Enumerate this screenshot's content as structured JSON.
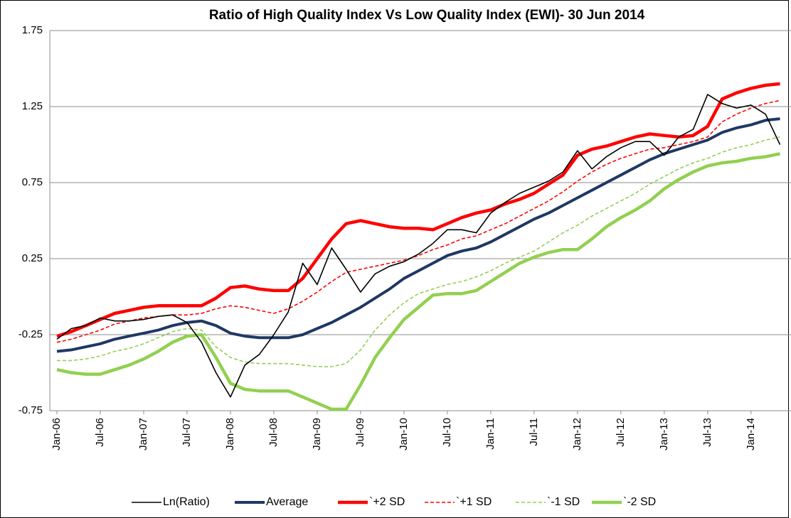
{
  "chart_data": {
    "type": "line",
    "title": "Ratio of High Quality Index Vs Low Quality Index (EWI)- 30 Jun 2014",
    "categories": [
      "Jan-06",
      null,
      null,
      "Jul-06",
      null,
      null,
      "Jan-07",
      null,
      null,
      "Jul-07",
      null,
      null,
      "Jan-08",
      null,
      null,
      "Jul-08",
      null,
      null,
      "Jan-09",
      null,
      null,
      "Jul-09",
      null,
      null,
      "Jan-10",
      null,
      null,
      "Jul-10",
      null,
      null,
      "Jan-11",
      null,
      null,
      "Jul-11",
      null,
      null,
      "Jan-12",
      null,
      null,
      "Jul-12",
      null,
      null,
      "Jan-13",
      null,
      null,
      "Jul-13",
      null,
      null,
      "Jan-14",
      null,
      null
    ],
    "ylim": [
      -0.75,
      1.75
    ],
    "yticks": [
      -0.75,
      -0.25,
      0.25,
      0.75,
      1.25,
      1.75
    ],
    "grid": true,
    "legend": "bottom",
    "series": [
      {
        "name": "Ln(Ratio)",
        "color": "#000000",
        "values": [
          -0.28,
          -0.21,
          -0.19,
          -0.14,
          -0.16,
          -0.16,
          -0.15,
          -0.13,
          -0.12,
          -0.17,
          -0.3,
          -0.5,
          -0.66,
          -0.45,
          -0.38,
          -0.25,
          -0.1,
          0.22,
          0.08,
          0.32,
          0.18,
          0.03,
          0.15,
          0.2,
          0.23,
          0.28,
          0.35,
          0.44,
          0.44,
          0.42,
          0.55,
          0.62,
          0.68,
          0.72,
          0.76,
          0.82,
          0.96,
          0.84,
          0.92,
          0.98,
          1.02,
          1.02,
          0.93,
          1.05,
          1.1,
          1.33,
          1.27,
          1.24,
          1.26,
          1.2,
          1.0
        ]
      },
      {
        "name": "Average",
        "color": "#1f3864",
        "values": [
          -0.36,
          -0.35,
          -0.33,
          -0.31,
          -0.28,
          -0.26,
          -0.24,
          -0.22,
          -0.19,
          -0.17,
          -0.16,
          -0.19,
          -0.24,
          -0.26,
          -0.27,
          -0.27,
          -0.27,
          -0.25,
          -0.21,
          -0.17,
          -0.12,
          -0.07,
          -0.01,
          0.05,
          0.12,
          0.17,
          0.22,
          0.27,
          0.3,
          0.32,
          0.36,
          0.41,
          0.46,
          0.51,
          0.55,
          0.6,
          0.65,
          0.7,
          0.75,
          0.8,
          0.85,
          0.9,
          0.94,
          0.97,
          1.0,
          1.03,
          1.08,
          1.11,
          1.13,
          1.16,
          1.17
        ]
      },
      {
        "name": "`+2 SD",
        "color": "#ff0000",
        "values": [
          -0.26,
          -0.23,
          -0.19,
          -0.15,
          -0.11,
          -0.09,
          -0.07,
          -0.06,
          -0.06,
          -0.06,
          -0.06,
          -0.01,
          0.06,
          0.07,
          0.05,
          0.04,
          0.04,
          0.12,
          0.25,
          0.38,
          0.48,
          0.5,
          0.48,
          0.46,
          0.45,
          0.45,
          0.44,
          0.48,
          0.52,
          0.55,
          0.57,
          0.61,
          0.64,
          0.68,
          0.74,
          0.8,
          0.93,
          0.97,
          0.99,
          1.02,
          1.05,
          1.07,
          1.06,
          1.05,
          1.06,
          1.12,
          1.3,
          1.34,
          1.37,
          1.39,
          1.4
        ]
      },
      {
        "name": "`+1 SD",
        "color": "#ff0000",
        "dashed": true,
        "values": [
          -0.3,
          -0.28,
          -0.25,
          -0.22,
          -0.18,
          -0.16,
          -0.14,
          -0.13,
          -0.12,
          -0.12,
          -0.11,
          -0.08,
          -0.06,
          -0.07,
          -0.09,
          -0.11,
          -0.08,
          -0.03,
          0.03,
          0.1,
          0.16,
          0.18,
          0.2,
          0.22,
          0.24,
          0.27,
          0.31,
          0.34,
          0.38,
          0.4,
          0.44,
          0.48,
          0.53,
          0.58,
          0.63,
          0.69,
          0.76,
          0.82,
          0.87,
          0.91,
          0.94,
          0.97,
          0.98,
          1.0,
          1.02,
          1.05,
          1.15,
          1.2,
          1.24,
          1.27,
          1.29
        ]
      },
      {
        "name": "`-1 SD",
        "color": "#92d050",
        "dashed": true,
        "values": [
          -0.42,
          -0.42,
          -0.41,
          -0.39,
          -0.36,
          -0.34,
          -0.31,
          -0.27,
          -0.23,
          -0.21,
          -0.22,
          -0.33,
          -0.4,
          -0.43,
          -0.44,
          -0.44,
          -0.44,
          -0.45,
          -0.46,
          -0.46,
          -0.44,
          -0.35,
          -0.22,
          -0.12,
          -0.04,
          0.02,
          0.05,
          0.08,
          0.1,
          0.13,
          0.17,
          0.22,
          0.26,
          0.3,
          0.36,
          0.42,
          0.47,
          0.53,
          0.58,
          0.63,
          0.68,
          0.74,
          0.79,
          0.84,
          0.88,
          0.91,
          0.95,
          0.98,
          1.0,
          1.03,
          1.05
        ]
      },
      {
        "name": "`-2 SD",
        "color": "#92d050",
        "values": [
          -0.48,
          -0.5,
          -0.51,
          -0.51,
          -0.48,
          -0.45,
          -0.41,
          -0.36,
          -0.3,
          -0.26,
          -0.25,
          -0.4,
          -0.57,
          -0.61,
          -0.62,
          -0.62,
          -0.62,
          -0.66,
          -0.7,
          -0.74,
          -0.74,
          -0.58,
          -0.4,
          -0.27,
          -0.15,
          -0.07,
          0.01,
          0.02,
          0.02,
          0.04,
          0.1,
          0.16,
          0.22,
          0.26,
          0.29,
          0.31,
          0.31,
          0.38,
          0.46,
          0.52,
          0.57,
          0.63,
          0.71,
          0.77,
          0.82,
          0.86,
          0.88,
          0.89,
          0.91,
          0.92,
          0.94
        ]
      }
    ]
  }
}
